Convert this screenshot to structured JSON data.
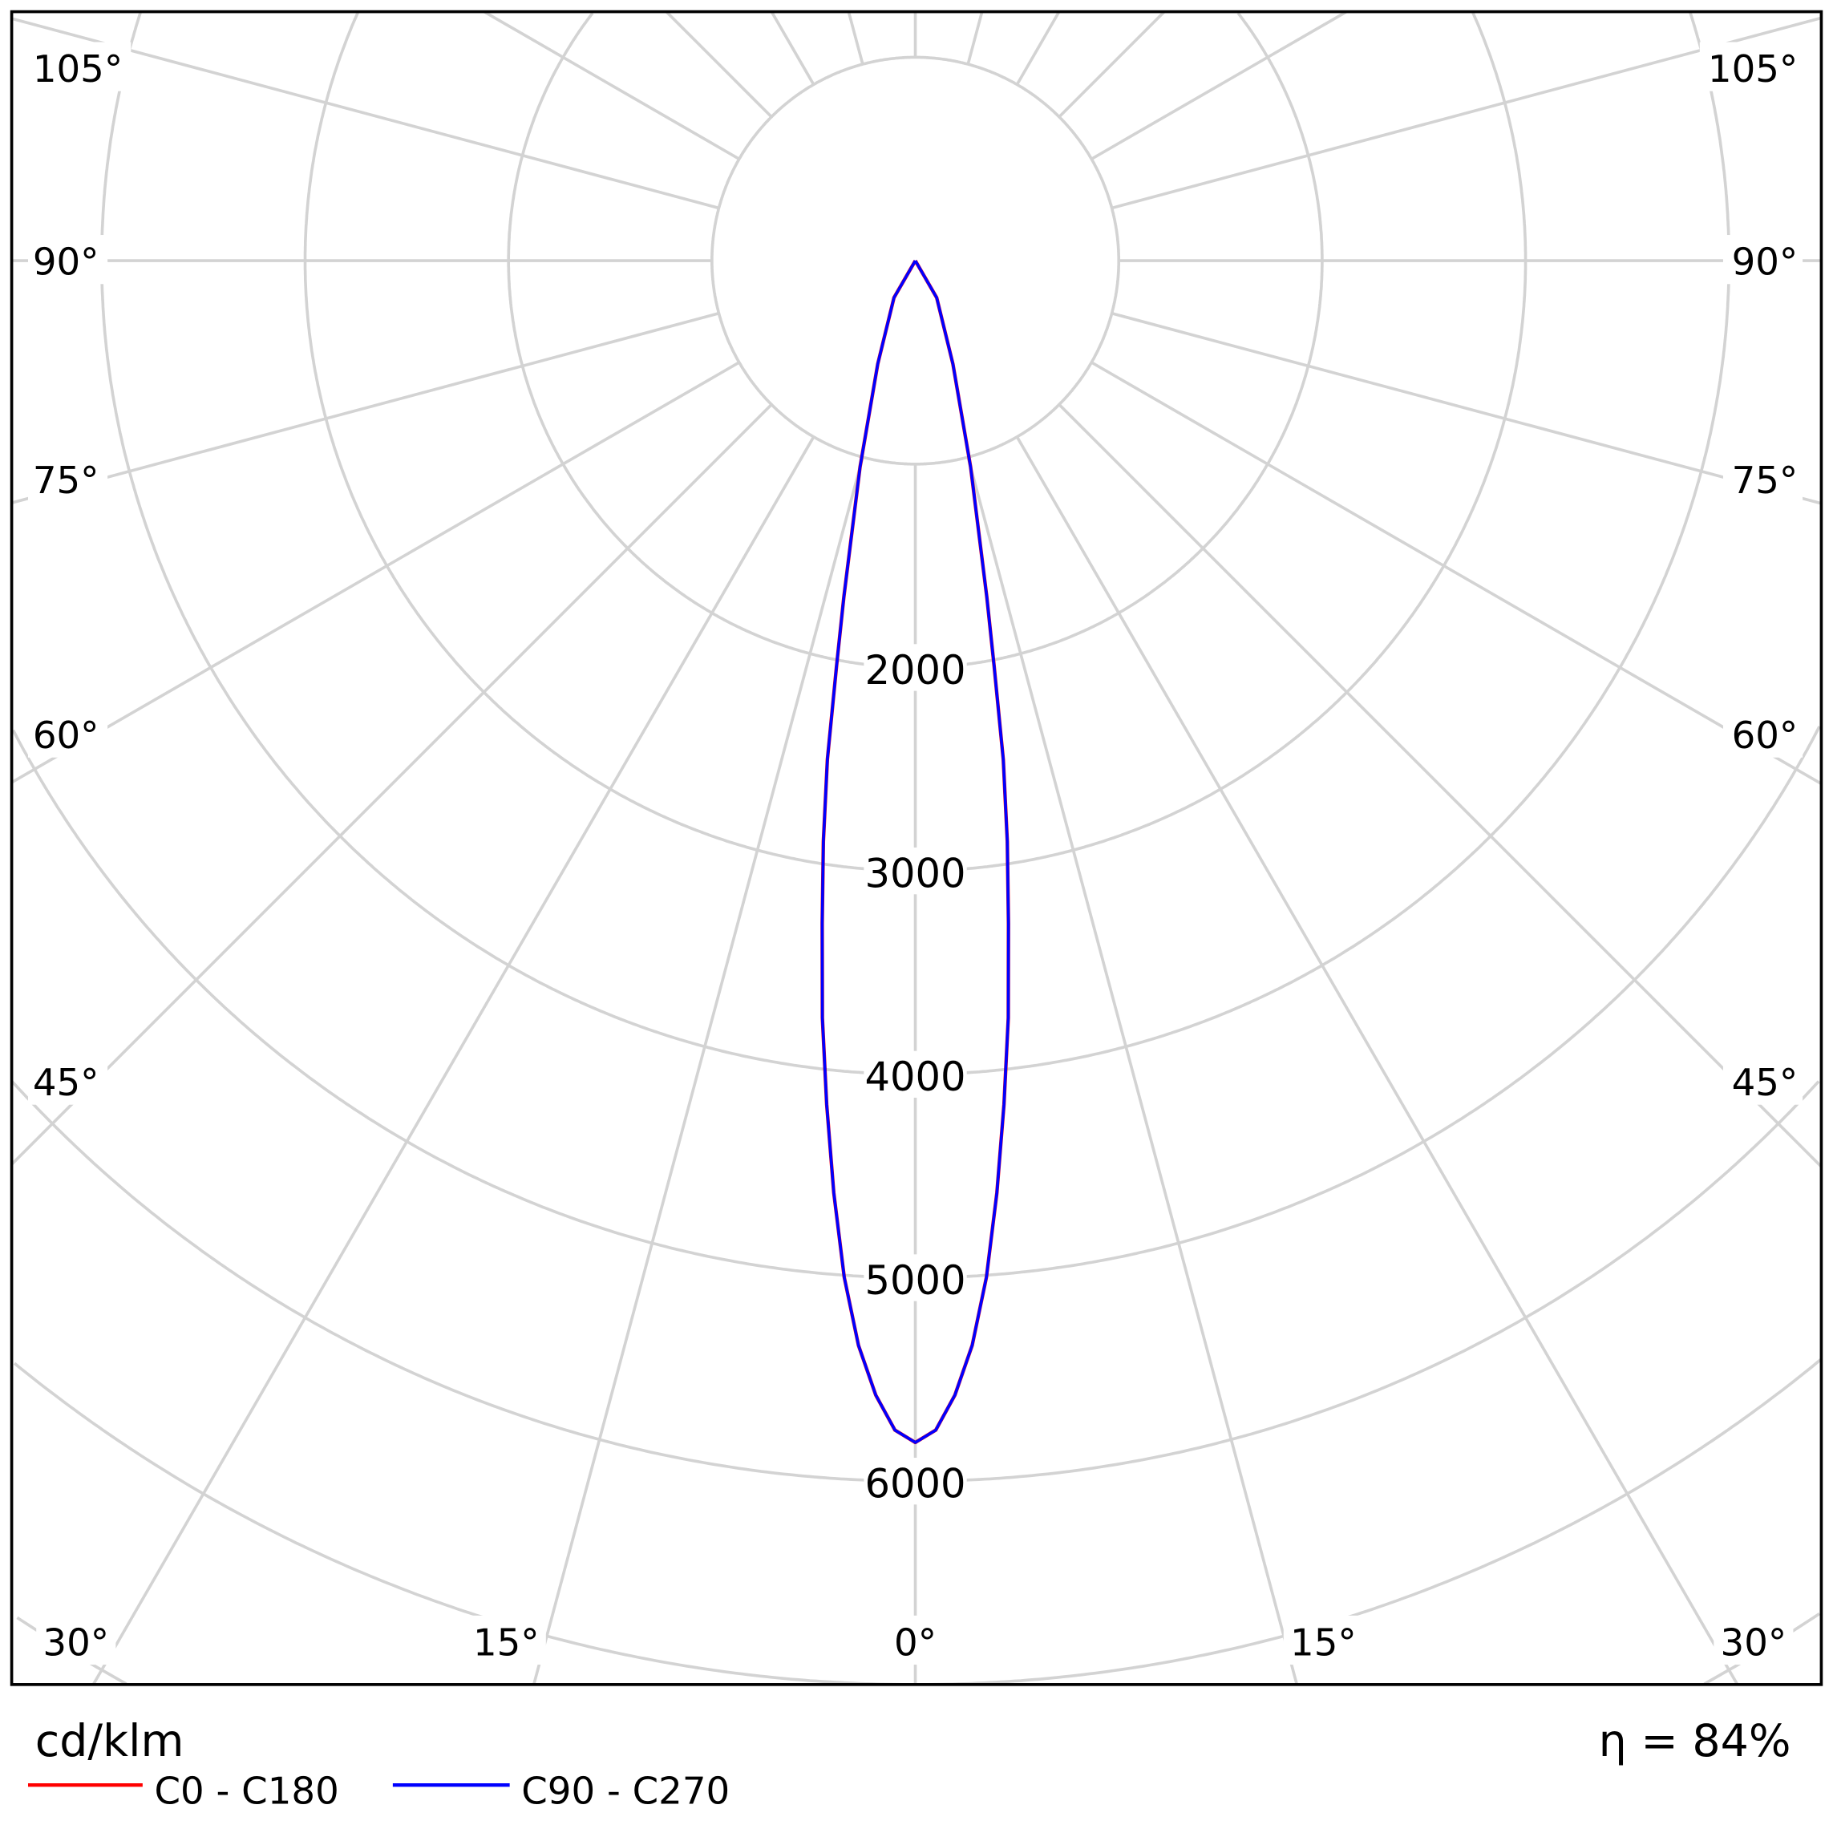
{
  "chart_data": {
    "type": "polar",
    "unit_label": "cd/klm",
    "efficiency_label": "η = 84%",
    "radial_ticks": [
      1000,
      2000,
      3000,
      4000,
      5000,
      6000,
      7000,
      8000,
      9000,
      10000
    ],
    "radial_tick_labels": [
      "2000",
      "3000",
      "4000",
      "5000",
      "6000"
    ],
    "angle_labels_left": [
      "105°",
      "90°",
      "75°",
      "60°",
      "45°",
      "30°",
      "15°"
    ],
    "angle_labels_bottom": "0°",
    "angle_labels_right": [
      "105°",
      "90°",
      "75°",
      "60°",
      "45°",
      "30°",
      "15°"
    ],
    "grid": true,
    "legend_position": "bottom-left",
    "series": [
      {
        "name": "C0 - C180",
        "color": "#ff0000",
        "angles": [
          0,
          1,
          2,
          3,
          4,
          5,
          6,
          7,
          8,
          9,
          10,
          11,
          12,
          15,
          20,
          30,
          90
        ],
        "values": [
          5810,
          5750,
          5580,
          5340,
          5010,
          4600,
          4170,
          3750,
          3290,
          2890,
          2490,
          2030,
          1690,
          1050,
          540,
          210,
          0
        ]
      },
      {
        "name": "C90 - C270",
        "color": "#0000ff",
        "angles": [
          0,
          1,
          2,
          3,
          4,
          5,
          6,
          7,
          8,
          9,
          10,
          11,
          12,
          15,
          20,
          30,
          90
        ],
        "values": [
          5810,
          5750,
          5580,
          5340,
          5010,
          4600,
          4170,
          3750,
          3290,
          2890,
          2490,
          2030,
          1690,
          1050,
          540,
          210,
          0
        ]
      }
    ]
  }
}
